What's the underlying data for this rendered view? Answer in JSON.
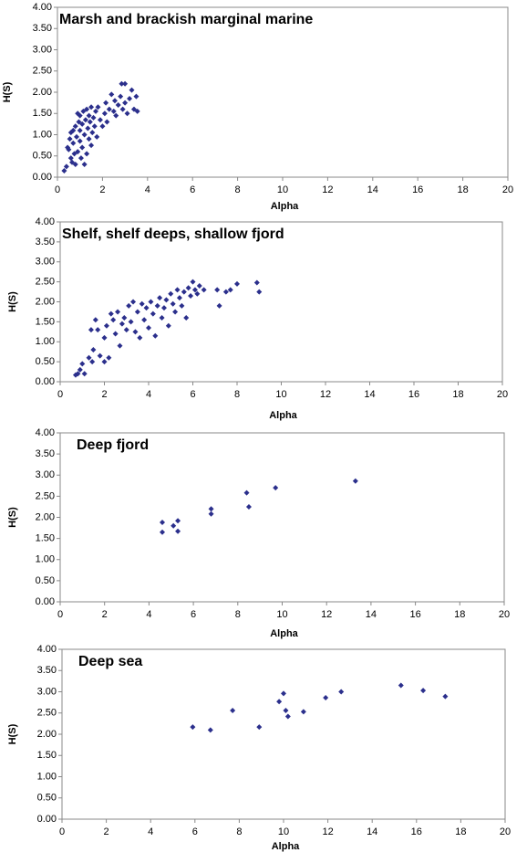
{
  "chart_data": [
    {
      "type": "scatter",
      "title": "Marsh and brackish marginal marine",
      "x_label": "Alpha",
      "y_label": "H(S)",
      "color": "#2b2f8c",
      "xlim": [
        0,
        20
      ],
      "xticks": [
        0,
        2,
        4,
        6,
        8,
        10,
        12,
        14,
        16,
        18,
        20
      ],
      "ylim": [
        0,
        4
      ],
      "yticks": [
        {
          "value": 0,
          "label": "0.00"
        },
        {
          "value": 0.5,
          "label": "0.50"
        },
        {
          "value": 1,
          "label": "1.00"
        },
        {
          "value": 1.5,
          "label": "1.50"
        },
        {
          "value": 2,
          "label": "2.00"
        },
        {
          "value": 2.5,
          "label": "2.50"
        },
        {
          "value": 3,
          "label": "3.00"
        },
        {
          "value": 3.5,
          "label": "3.50"
        },
        {
          "value": 4,
          "label": "4.00"
        }
      ],
      "x": [
        0.3,
        0.4,
        0.45,
        0.5,
        0.55,
        0.6,
        0.6,
        0.65,
        0.7,
        0.7,
        0.75,
        0.8,
        0.8,
        0.85,
        0.9,
        0.9,
        0.95,
        1.0,
        1.0,
        1.0,
        1.05,
        1.1,
        1.1,
        1.15,
        1.2,
        1.2,
        1.25,
        1.3,
        1.3,
        1.35,
        1.4,
        1.4,
        1.45,
        1.5,
        1.5,
        1.55,
        1.6,
        1.65,
        1.7,
        1.75,
        1.8,
        1.9,
        2.0,
        2.1,
        2.15,
        2.2,
        2.3,
        2.4,
        2.5,
        2.55,
        2.6,
        2.7,
        2.8,
        2.85,
        2.9,
        3.0,
        3.0,
        3.1,
        3.2,
        3.3,
        3.4,
        3.5,
        3.55
      ],
      "values": [
        0.15,
        0.25,
        0.7,
        0.65,
        0.9,
        0.45,
        1.05,
        0.35,
        0.8,
        1.1,
        0.55,
        0.3,
        1.2,
        0.95,
        1.5,
        0.6,
        1.3,
        0.85,
        1.1,
        1.45,
        0.45,
        1.25,
        0.7,
        1.55,
        1.0,
        0.3,
        1.35,
        0.55,
        1.6,
        1.15,
        0.9,
        1.45,
        1.3,
        1.65,
        0.75,
        1.05,
        1.4,
        1.2,
        1.55,
        0.95,
        1.65,
        1.35,
        1.2,
        1.5,
        1.75,
        1.3,
        1.6,
        1.95,
        1.55,
        1.8,
        1.45,
        1.7,
        1.9,
        2.2,
        1.6,
        2.2,
        1.75,
        1.5,
        1.85,
        2.05,
        1.6,
        1.9,
        1.55
      ]
    },
    {
      "type": "scatter",
      "title": "Shelf, shelf deeps, shallow fjord",
      "x_label": "Alpha",
      "y_label": "H(S)",
      "color": "#2b2f8c",
      "xlim": [
        0,
        20
      ],
      "xticks": [
        0,
        2,
        4,
        6,
        8,
        10,
        12,
        14,
        16,
        18,
        20
      ],
      "ylim": [
        0,
        4
      ],
      "yticks": [
        {
          "value": 0,
          "label": "0.00"
        },
        {
          "value": 0.5,
          "label": "0.50"
        },
        {
          "value": 1,
          "label": "1.00"
        },
        {
          "value": 1.5,
          "label": "1.50"
        },
        {
          "value": 2,
          "label": "2.00"
        },
        {
          "value": 2.5,
          "label": "2.50"
        },
        {
          "value": 3,
          "label": "3.00"
        },
        {
          "value": 3.5,
          "label": "3.50"
        },
        {
          "value": 4,
          "label": "4.00"
        }
      ],
      "x": [
        0.7,
        0.8,
        0.9,
        1.0,
        1.1,
        1.3,
        1.4,
        1.45,
        1.5,
        1.6,
        1.7,
        1.8,
        2.0,
        2.0,
        2.1,
        2.2,
        2.3,
        2.4,
        2.5,
        2.6,
        2.7,
        2.8,
        2.9,
        3.0,
        3.1,
        3.2,
        3.3,
        3.4,
        3.5,
        3.6,
        3.7,
        3.8,
        3.9,
        4.0,
        4.1,
        4.2,
        4.3,
        4.4,
        4.5,
        4.6,
        4.7,
        4.8,
        4.9,
        5.0,
        5.1,
        5.2,
        5.3,
        5.4,
        5.5,
        5.6,
        5.7,
        5.8,
        5.9,
        6.0,
        6.1,
        6.2,
        6.3,
        6.5,
        7.1,
        7.2,
        7.5,
        7.7,
        8.0,
        8.9,
        9.0
      ],
      "values": [
        0.17,
        0.2,
        0.3,
        0.45,
        0.2,
        0.6,
        1.3,
        0.5,
        0.8,
        1.55,
        1.3,
        0.65,
        0.5,
        1.1,
        1.4,
        0.6,
        1.7,
        1.55,
        1.2,
        1.75,
        0.9,
        1.45,
        1.6,
        1.3,
        1.9,
        1.5,
        2.0,
        1.25,
        1.75,
        1.1,
        1.95,
        1.55,
        1.85,
        1.35,
        2.0,
        1.7,
        1.15,
        1.9,
        2.1,
        1.6,
        1.85,
        2.05,
        1.4,
        2.2,
        1.95,
        1.75,
        2.3,
        2.1,
        1.9,
        2.25,
        1.6,
        2.35,
        2.15,
        2.5,
        2.3,
        2.2,
        2.4,
        2.3,
        2.3,
        1.9,
        2.25,
        2.3,
        2.45,
        2.48,
        2.25
      ]
    },
    {
      "type": "scatter",
      "title": "Deep fjord",
      "x_label": "Alpha",
      "y_label": "H(S)",
      "color": "#2b2f8c",
      "xlim": [
        0,
        20
      ],
      "xticks": [
        0,
        2,
        4,
        6,
        8,
        10,
        12,
        14,
        16,
        18,
        20
      ],
      "ylim": [
        0,
        4
      ],
      "yticks": [
        {
          "value": 0,
          "label": "0.00"
        },
        {
          "value": 0.5,
          "label": "0.50"
        },
        {
          "value": 1,
          "label": "1.00"
        },
        {
          "value": 1.5,
          "label": "1.50"
        },
        {
          "value": 2,
          "label": "2.00"
        },
        {
          "value": 2.5,
          "label": "2.50"
        },
        {
          "value": 3,
          "label": "3.00"
        },
        {
          "value": 3.5,
          "label": "3.50"
        },
        {
          "value": 4,
          "label": "4.00"
        }
      ],
      "x": [
        4.6,
        4.6,
        5.1,
        5.3,
        5.3,
        6.8,
        6.8,
        8.4,
        8.5,
        9.7,
        13.3
      ],
      "values": [
        1.88,
        1.65,
        1.8,
        1.92,
        1.67,
        2.2,
        2.08,
        2.58,
        2.25,
        2.7,
        2.86
      ]
    },
    {
      "type": "scatter",
      "title": "Deep sea",
      "x_label": "Alpha",
      "y_label": "H(S)",
      "color": "#2b2f8c",
      "xlim": [
        0,
        20
      ],
      "xticks": [
        0,
        2,
        4,
        6,
        8,
        10,
        12,
        14,
        16,
        18,
        20
      ],
      "ylim": [
        0,
        4
      ],
      "yticks": [
        {
          "value": 0,
          "label": "0.00"
        },
        {
          "value": 0.5,
          "label": "0.50"
        },
        {
          "value": 1,
          "label": "1.00"
        },
        {
          "value": 1.5,
          "label": "1.50"
        },
        {
          "value": 2,
          "label": "2.00"
        },
        {
          "value": 2.5,
          "label": "2.50"
        },
        {
          "value": 3,
          "label": "3.00"
        },
        {
          "value": 3.5,
          "label": "3.50"
        },
        {
          "value": 4,
          "label": "4.00"
        }
      ],
      "x": [
        5.9,
        6.7,
        7.7,
        8.9,
        9.8,
        10.0,
        10.1,
        10.2,
        10.9,
        11.9,
        12.6,
        15.3,
        16.3,
        17.3
      ],
      "values": [
        2.17,
        2.1,
        2.56,
        2.17,
        2.77,
        2.96,
        2.56,
        2.42,
        2.53,
        2.86,
        3.0,
        3.15,
        3.03,
        2.89
      ]
    }
  ]
}
